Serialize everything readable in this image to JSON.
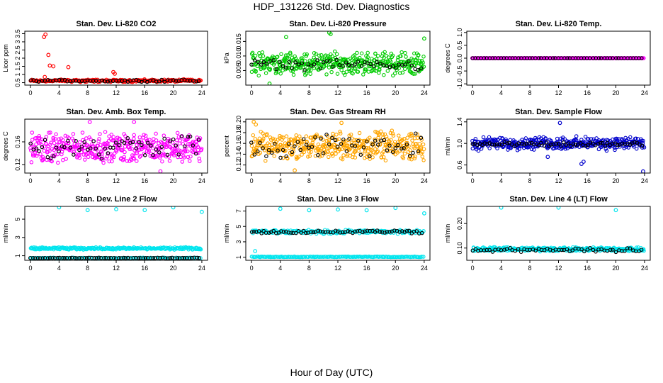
{
  "page": {
    "title": "HDP_131226  Std. Dev. Diagnostics",
    "xaxis_caption": "Hour of Day (UTC)"
  },
  "colors": {
    "flag_points": "#000000",
    "axis": "#000000"
  },
  "chart_data": [
    {
      "type": "scatter",
      "title": "Stan. Dev. Li-820 CO2",
      "ylabel": "Licor ppm",
      "xlim": [
        -0.8,
        24.8
      ],
      "ylim": [
        0.35,
        3.65
      ],
      "x_ticks": [
        0,
        4,
        8,
        12,
        16,
        20,
        24
      ],
      "y_ticks": [
        0.5,
        1.0,
        1.5,
        2.0,
        2.5,
        3.0,
        3.5
      ],
      "y_tick_labels": [
        "0.5",
        "1",
        "1.5",
        "2",
        "2.5",
        "3",
        "3.5"
      ],
      "series": [
        {
          "color": "#ff0000",
          "n": 220,
          "base": 0.62,
          "spread": 0.1,
          "outliers": [
            [
              1.9,
              3.3
            ],
            [
              2.1,
              3.45
            ],
            [
              2.5,
              2.2
            ],
            [
              2.7,
              1.55
            ],
            [
              3.2,
              1.5
            ],
            [
              5.3,
              1.45
            ],
            [
              11.6,
              1.15
            ],
            [
              11.8,
              1.05
            ],
            [
              2.0,
              0.85
            ]
          ]
        },
        {
          "color": "#000000",
          "n": 60,
          "base": 0.62,
          "spread": 0.08,
          "outliers": []
        }
      ]
    },
    {
      "type": "scatter",
      "title": "Stan. Dev. Li-820 Pressure",
      "ylabel": "kPa",
      "xlim": [
        -0.8,
        24.8
      ],
      "ylim": [
        0.0,
        0.0185
      ],
      "x_ticks": [
        0,
        4,
        8,
        12,
        16,
        20,
        24
      ],
      "y_ticks": [
        0.005,
        0.01,
        0.015
      ],
      "y_tick_labels": [
        "0.005",
        "0.010",
        "0.015"
      ],
      "series": [
        {
          "color": "#00cc00",
          "n": 420,
          "base": 0.0075,
          "spread": 0.0045,
          "outliers": [
            [
              10.8,
              0.018
            ],
            [
              11.0,
              0.0175
            ],
            [
              24.0,
              0.016
            ],
            [
              4.8,
              0.0165
            ],
            [
              2.5,
              0.0005
            ]
          ]
        },
        {
          "color": "#000000",
          "n": 55,
          "base": 0.007,
          "spread": 0.002,
          "outliers": []
        }
      ]
    },
    {
      "type": "scatter",
      "title": "Stan. Dev. Li-820 Temp.",
      "ylabel": "degrees C",
      "xlim": [
        -0.8,
        24.8
      ],
      "ylim": [
        -1.05,
        1.05
      ],
      "x_ticks": [
        0,
        4,
        8,
        12,
        16,
        20,
        24
      ],
      "y_ticks": [
        -1.0,
        -0.5,
        0.0,
        0.5,
        1.0
      ],
      "y_tick_labels": [
        "-1.0",
        "-0.5",
        "0.0",
        "0.5",
        "1.0"
      ],
      "series": [
        {
          "color": "#ff00ff",
          "n": 300,
          "base": 0.0,
          "spread": 0.0,
          "outliers": []
        },
        {
          "color": "#000000",
          "n": 60,
          "base": 0.0,
          "spread": 0.0,
          "outliers": []
        }
      ]
    },
    {
      "type": "scatter",
      "title": "Stan. Dev. Amb. Box Temp.",
      "ylabel": "degrees C",
      "xlim": [
        -0.8,
        24.8
      ],
      "ylim": [
        0.105,
        0.2
      ],
      "x_ticks": [
        0,
        4,
        8,
        12,
        16,
        20,
        24
      ],
      "y_ticks": [
        0.12,
        0.16
      ],
      "y_tick_labels": [
        "0.12",
        "0.16"
      ],
      "series": [
        {
          "color": "#ff00ff",
          "n": 420,
          "base": 0.15,
          "spread": 0.03,
          "outliers": [
            [
              8.3,
              0.195
            ],
            [
              14.5,
              0.195
            ],
            [
              18.2,
              0.108
            ]
          ]
        },
        {
          "color": "#000000",
          "n": 60,
          "base": 0.15,
          "spread": 0.025,
          "outliers": []
        }
      ]
    },
    {
      "type": "scatter",
      "title": "Stan. Dev. Gas Stream RH",
      "ylabel": "percent",
      "xlim": [
        -0.8,
        24.8
      ],
      "ylim": [
        0.105,
        0.205
      ],
      "x_ticks": [
        0,
        4,
        8,
        12,
        16,
        20,
        24
      ],
      "y_ticks": [
        0.12,
        0.14,
        0.16,
        0.18,
        0.2
      ],
      "y_tick_labels": [
        "0.12",
        "0.14",
        "0.16",
        "0.18",
        "0.20"
      ],
      "series": [
        {
          "color": "#ffa500",
          "n": 430,
          "base": 0.155,
          "spread": 0.03,
          "outliers": [
            [
              0.3,
              0.2
            ],
            [
              0.6,
              0.195
            ],
            [
              6.0,
              0.11
            ],
            [
              12.5,
              0.198
            ]
          ]
        },
        {
          "color": "#000000",
          "n": 60,
          "base": 0.155,
          "spread": 0.025,
          "outliers": []
        }
      ]
    },
    {
      "type": "scatter",
      "title": "Stan. Dev. Sample Flow",
      "ylabel": "ml/min",
      "xlim": [
        -0.8,
        24.8
      ],
      "ylim": [
        0.45,
        1.45
      ],
      "x_ticks": [
        0,
        4,
        8,
        12,
        16,
        20,
        24
      ],
      "y_ticks": [
        0.6,
        1.0,
        1.4
      ],
      "y_tick_labels": [
        "0.6",
        "1.0",
        "1.4"
      ],
      "series": [
        {
          "color": "#0000cc",
          "n": 380,
          "base": 1.0,
          "spread": 0.14,
          "outliers": [
            [
              12.2,
              1.38
            ],
            [
              15.2,
              0.62
            ],
            [
              15.5,
              0.66
            ],
            [
              23.8,
              0.48
            ],
            [
              10.5,
              0.75
            ]
          ]
        },
        {
          "color": "#000000",
          "n": 70,
          "base": 0.98,
          "spread": 0.05,
          "outliers": []
        }
      ]
    },
    {
      "type": "scatter",
      "title": "Stan. Dev. Line 2 Flow",
      "ylabel": "ml/min",
      "xlim": [
        -0.8,
        24.8
      ],
      "ylim": [
        0.5,
        6.4
      ],
      "x_ticks": [
        0,
        4,
        8,
        12,
        16,
        20,
        24
      ],
      "y_ticks": [
        1,
        3,
        5
      ],
      "y_tick_labels": [
        "1",
        "3",
        "5"
      ],
      "series": [
        {
          "color": "#00e5ee",
          "n": 240,
          "base": 1.8,
          "spread": 0.15,
          "outliers": [
            [
              4.0,
              6.3
            ],
            [
              8.0,
              6.0
            ],
            [
              12.0,
              6.1
            ],
            [
              16.0,
              6.0
            ],
            [
              20.0,
              6.3
            ],
            [
              24.0,
              5.8
            ]
          ]
        },
        {
          "color": "#00e5ee",
          "n": 120,
          "base": 0.75,
          "spread": 0.05,
          "outliers": []
        },
        {
          "color": "#000000",
          "n": 70,
          "base": 0.75,
          "spread": 0.04,
          "outliers": []
        }
      ]
    },
    {
      "type": "scatter",
      "title": "Stan. Dev. Line 3 Flow",
      "ylabel": "ml/min",
      "xlim": [
        -0.8,
        24.8
      ],
      "ylim": [
        0.6,
        7.6
      ],
      "x_ticks": [
        0,
        4,
        8,
        12,
        16,
        20,
        24
      ],
      "y_ticks": [
        1,
        3,
        5,
        7
      ],
      "y_tick_labels": [
        "1",
        "3",
        "5",
        "7"
      ],
      "series": [
        {
          "color": "#00e5ee",
          "n": 200,
          "base": 4.3,
          "spread": 0.3,
          "outliers": [
            [
              4.0,
              7.3
            ],
            [
              8.0,
              7.1
            ],
            [
              12.0,
              7.2
            ],
            [
              16.0,
              7.1
            ],
            [
              20.0,
              7.4
            ],
            [
              24.0,
              6.7
            ],
            [
              0.5,
              1.8
            ]
          ]
        },
        {
          "color": "#00e5ee",
          "n": 160,
          "base": 1.05,
          "spread": 0.06,
          "outliers": []
        },
        {
          "color": "#000000",
          "n": 70,
          "base": 4.3,
          "spread": 0.25,
          "outliers": []
        }
      ]
    },
    {
      "type": "scatter",
      "title": "Stan. Dev. Line 4 (LT) Flow",
      "ylabel": "ml/min",
      "xlim": [
        -0.8,
        24.8
      ],
      "ylim": [
        0.05,
        0.27
      ],
      "x_ticks": [
        0,
        4,
        8,
        12,
        16,
        20,
        24
      ],
      "y_ticks": [
        0.1,
        0.2
      ],
      "y_tick_labels": [
        "0.10",
        "0.20"
      ],
      "series": [
        {
          "color": "#00e5ee",
          "n": 330,
          "base": 0.095,
          "spread": 0.01,
          "outliers": [
            [
              4.0,
              0.265
            ],
            [
              12.0,
              0.265
            ],
            [
              20.0,
              0.255
            ]
          ]
        },
        {
          "color": "#000000",
          "n": 60,
          "base": 0.093,
          "spread": 0.01,
          "outliers": []
        }
      ]
    }
  ]
}
